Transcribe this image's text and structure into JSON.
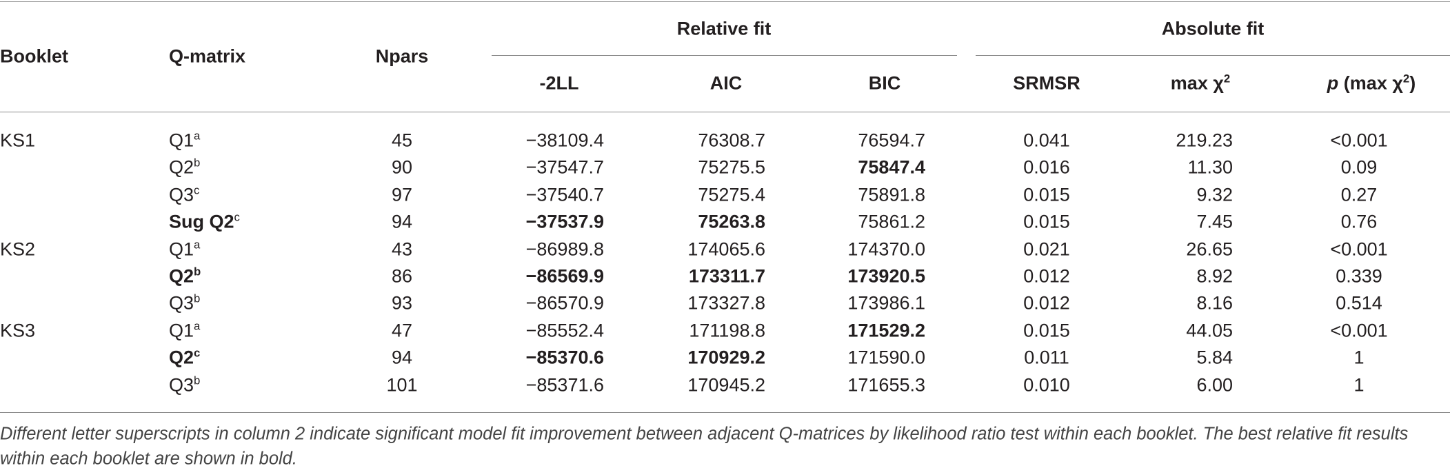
{
  "table": {
    "group_headers": [
      "Relative fit",
      "Absolute fit"
    ],
    "columns": [
      {
        "key": "booklet",
        "label": [
          {
            "text": "Booklet"
          }
        ]
      },
      {
        "key": "qmatrix",
        "label": [
          {
            "text": "Q-matrix"
          }
        ]
      },
      {
        "key": "npars",
        "label": [
          {
            "text": "Npars"
          }
        ]
      },
      {
        "key": "ll",
        "label": [
          {
            "text": "-2LL"
          }
        ]
      },
      {
        "key": "aic",
        "label": [
          {
            "text": "AIC"
          }
        ]
      },
      {
        "key": "bic",
        "label": [
          {
            "text": "BIC"
          }
        ]
      },
      {
        "key": "srmsr",
        "label": [
          {
            "text": "SRMSR"
          }
        ]
      },
      {
        "key": "maxchi",
        "label": [
          {
            "text": "max χ"
          },
          {
            "text": "2",
            "sup": true
          }
        ]
      },
      {
        "key": "p",
        "label": [
          {
            "text": "p",
            "italic": true
          },
          {
            "text": " (max χ"
          },
          {
            "text": "2",
            "sup": true
          },
          {
            "text": ")"
          }
        ]
      }
    ],
    "groups": [
      {
        "booklet": "KS1",
        "rows": [
          {
            "qmatrix": "Q1",
            "sup": "a",
            "npars": "45",
            "ll": "−38109.4",
            "aic": "76308.7",
            "bic": "76594.7",
            "srmsr": "0.041",
            "maxchi": "219.23",
            "p": "<0.001"
          },
          {
            "qmatrix": "Q2",
            "sup": "b",
            "npars": "90",
            "ll": "−37547.7",
            "aic": "75275.5",
            "bic": "75847.4",
            "srmsr": "0.016",
            "maxchi": "11.30",
            "p": "0.09",
            "bold": [
              "bic"
            ]
          },
          {
            "qmatrix": "Q3",
            "sup": "c",
            "npars": "97",
            "ll": "−37540.7",
            "aic": "75275.4",
            "bic": "75891.8",
            "srmsr": "0.015",
            "maxchi": "9.32",
            "p": "0.27"
          },
          {
            "qmatrix": "Sug Q2",
            "sup": "c",
            "npars": "94",
            "ll": "−37537.9",
            "aic": "75263.8",
            "bic": "75861.2",
            "srmsr": "0.015",
            "maxchi": "7.45",
            "p": "0.76",
            "bold": [
              "qmatrix",
              "ll",
              "aic"
            ]
          }
        ]
      },
      {
        "booklet": "KS2",
        "rows": [
          {
            "qmatrix": "Q1",
            "sup": "a",
            "npars": "43",
            "ll": "−86989.8",
            "aic": "174065.6",
            "bic": "174370.0",
            "srmsr": "0.021",
            "maxchi": "26.65",
            "p": "<0.001"
          },
          {
            "qmatrix": "Q2",
            "sup": "b",
            "npars": "86",
            "ll": "−86569.9",
            "aic": "173311.7",
            "bic": "173920.5",
            "srmsr": "0.012",
            "maxchi": "8.92",
            "p": "0.339",
            "bold": [
              "qmatrix",
              "ll",
              "aic",
              "bic"
            ]
          },
          {
            "qmatrix": "Q3",
            "sup": "b",
            "npars": "93",
            "ll": "−86570.9",
            "aic": "173327.8",
            "bic": "173986.1",
            "srmsr": "0.012",
            "maxchi": "8.16",
            "p": "0.514"
          }
        ]
      },
      {
        "booklet": "KS3",
        "rows": [
          {
            "qmatrix": "Q1",
            "sup": "a",
            "npars": "47",
            "ll": "−85552.4",
            "aic": "171198.8",
            "bic": "171529.2",
            "srmsr": "0.015",
            "maxchi": "44.05",
            "p": "<0.001",
            "bold": [
              "bic"
            ]
          },
          {
            "qmatrix": "Q2",
            "sup": "c",
            "npars": "94",
            "ll": "−85370.6",
            "aic": "170929.2",
            "bic": "171590.0",
            "srmsr": "0.011",
            "maxchi": "5.84",
            "p": "1",
            "bold": [
              "qmatrix",
              "ll",
              "aic"
            ]
          },
          {
            "qmatrix": "Q3",
            "sup": "b",
            "npars": "101",
            "ll": "−85371.6",
            "aic": "170945.2",
            "bic": "171655.3",
            "srmsr": "0.010",
            "maxchi": "6.00",
            "p": "1"
          }
        ]
      }
    ],
    "footnote": [
      "Different letter superscripts in column 2 indicate significant model fit improvement between adjacent Q-matrices by likelihood ratio test within each booklet. The best relative fit results",
      "within each booklet are shown in bold."
    ]
  }
}
